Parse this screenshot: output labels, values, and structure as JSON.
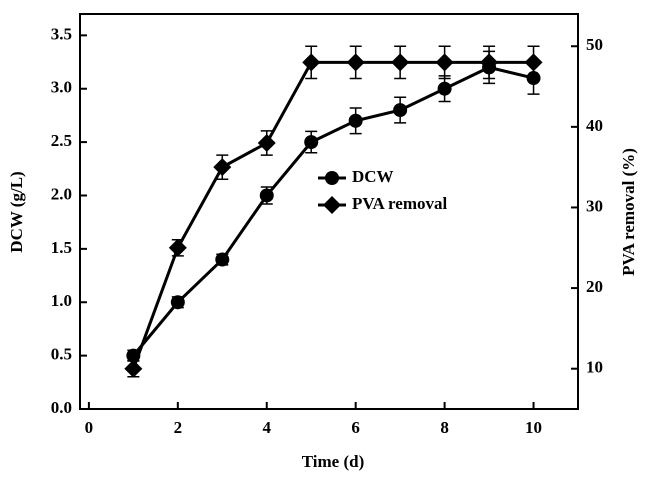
{
  "chart_data": {
    "type": "line",
    "x_label": "Time (d)",
    "y_label": "DCW (g/L)",
    "y2_label": "PVA removal (%)",
    "x": [
      1,
      2,
      3,
      4,
      5,
      6,
      7,
      8,
      9,
      10
    ],
    "series": [
      {
        "name": "DCW",
        "color": "#000000",
        "marker": "circle",
        "axis": "y",
        "values": [
          0.5,
          1.0,
          1.4,
          2.0,
          2.5,
          2.7,
          2.8,
          3.0,
          3.2,
          3.1
        ],
        "errors": [
          0.05,
          0.05,
          0.05,
          0.08,
          0.1,
          0.12,
          0.12,
          0.12,
          0.15,
          0.15
        ]
      },
      {
        "name": "PVA removal",
        "color": "#000000",
        "marker": "diamond",
        "axis": "y2",
        "values": [
          10,
          25,
          35,
          38,
          48,
          48,
          48,
          48,
          48,
          48
        ],
        "errors": [
          1,
          1,
          1.5,
          1.5,
          2,
          2,
          2,
          2,
          2,
          2
        ]
      }
    ],
    "xlim": [
      -0.2,
      11
    ],
    "xticks": [
      0,
      2,
      4,
      6,
      8,
      10
    ],
    "ylim": [
      0,
      3.7
    ],
    "yticks": [
      {
        "value": 0,
        "label": "0.0"
      },
      {
        "value": 0.5,
        "label": "0.5"
      },
      {
        "value": 1,
        "label": "1.0"
      },
      {
        "value": 1.5,
        "label": "1.5"
      },
      {
        "value": 2,
        "label": "2.0"
      },
      {
        "value": 2.5,
        "label": "2.5"
      },
      {
        "value": 3,
        "label": "3.0"
      },
      {
        "value": 3.5,
        "label": "3.5"
      }
    ],
    "y2lim": [
      5,
      54
    ],
    "y2ticks": [
      10,
      20,
      30,
      40,
      50
    ],
    "legend": "center"
  }
}
